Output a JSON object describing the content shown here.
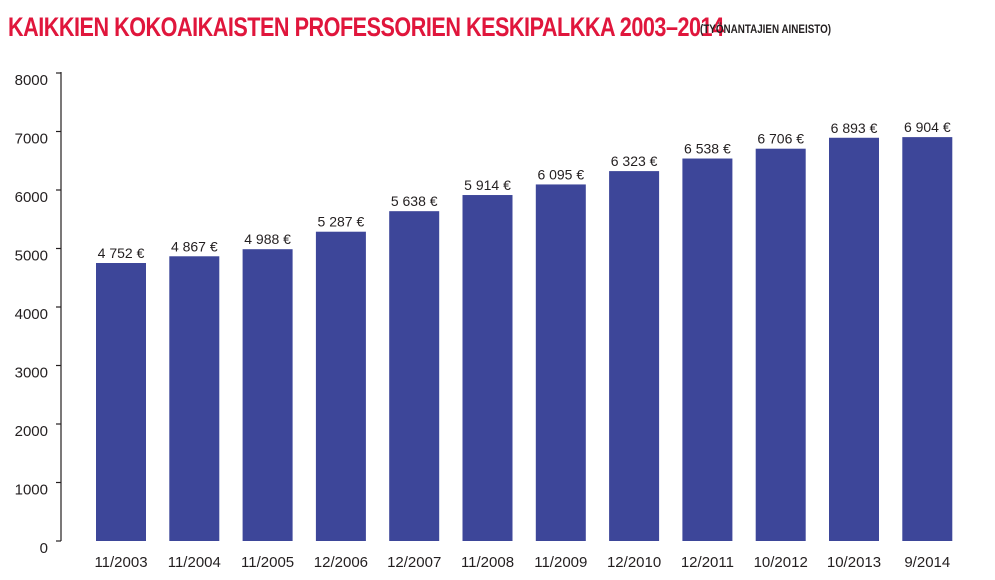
{
  "chart_data": {
    "type": "bar",
    "title": "KAIKKIEN KOKOAIKAISTEN PROFESSORIEN KESKIPALKKA 2003–2014",
    "subtitle": "(TYÖNANTAJIEN AINEISTO)",
    "xlabel": "",
    "ylabel": "",
    "categories": [
      "11/2003",
      "11/2004",
      "11/2005",
      "12/2006",
      "12/2007",
      "11/2008",
      "11/2009",
      "12/2010",
      "12/2011",
      "10/2012",
      "10/2013",
      "9/2014"
    ],
    "values": [
      4752,
      4867,
      4988,
      5287,
      5638,
      5914,
      6095,
      6323,
      6538,
      6706,
      6893,
      6904
    ],
    "data_labels": [
      "4 752 €",
      "4 867 €",
      "4 988 €",
      "5 287 €",
      "5 638 €",
      "5 914 €",
      "6 095 €",
      "6 323 €",
      "6 538 €",
      "6 706 €",
      "6 893 €",
      "6 904 €"
    ],
    "ylim": [
      0,
      8000
    ],
    "yticks": [
      0,
      1000,
      2000,
      3000,
      4000,
      5000,
      6000,
      7000,
      8000
    ],
    "ytick_labels": [
      "0",
      "1000",
      "2000",
      "3000",
      "4000",
      "5000",
      "6000",
      "7000",
      "8000"
    ],
    "grid": false,
    "legend": "none",
    "colors": {
      "bar": "#3d4699",
      "title": "#e0163c",
      "text": "#231f20",
      "axis": "#231f20"
    }
  }
}
